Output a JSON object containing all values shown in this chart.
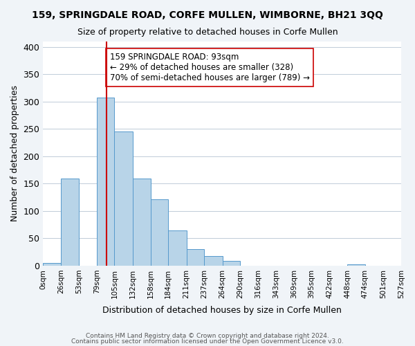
{
  "title": "159, SPRINGDALE ROAD, CORFE MULLEN, WIMBORNE, BH21 3QQ",
  "subtitle": "Size of property relative to detached houses in Corfe Mullen",
  "xlabel": "Distribution of detached houses by size in Corfe Mullen",
  "ylabel": "Number of detached properties",
  "bar_edges": [
    0,
    26,
    53,
    79,
    105,
    132,
    158,
    184,
    211,
    237,
    264,
    290,
    316,
    343,
    369,
    395,
    422,
    448,
    474,
    501,
    527
  ],
  "bar_heights": [
    5,
    160,
    0,
    307,
    245,
    160,
    122,
    64,
    30,
    18,
    9,
    0,
    0,
    0,
    0,
    0,
    0,
    2,
    0,
    0
  ],
  "bar_color": "#b8d4e8",
  "bar_edge_color": "#5599cc",
  "vline_x": 93,
  "vline_color": "#cc0000",
  "annotation_text": "159 SPRINGDALE ROAD: 93sqm\n← 29% of detached houses are smaller (328)\n70% of semi-detached houses are larger (789) →",
  "annotation_box_color": "#ffffff",
  "annotation_box_edge": "#cc0000",
  "ylim": [
    0,
    410
  ],
  "yticks": [
    0,
    50,
    100,
    150,
    200,
    250,
    300,
    350,
    400
  ],
  "tick_labels": [
    "0sqm",
    "26sqm",
    "53sqm",
    "79sqm",
    "105sqm",
    "132sqm",
    "158sqm",
    "184sqm",
    "211sqm",
    "237sqm",
    "264sqm",
    "290sqm",
    "316sqm",
    "343sqm",
    "369sqm",
    "395sqm",
    "422sqm",
    "448sqm",
    "474sqm",
    "501sqm",
    "527sqm"
  ],
  "footer_line1": "Contains HM Land Registry data © Crown copyright and database right 2024.",
  "footer_line2": "Contains public sector information licensed under the Open Government Licence v3.0.",
  "background_color": "#f0f4f8",
  "plot_background_color": "#ffffff"
}
